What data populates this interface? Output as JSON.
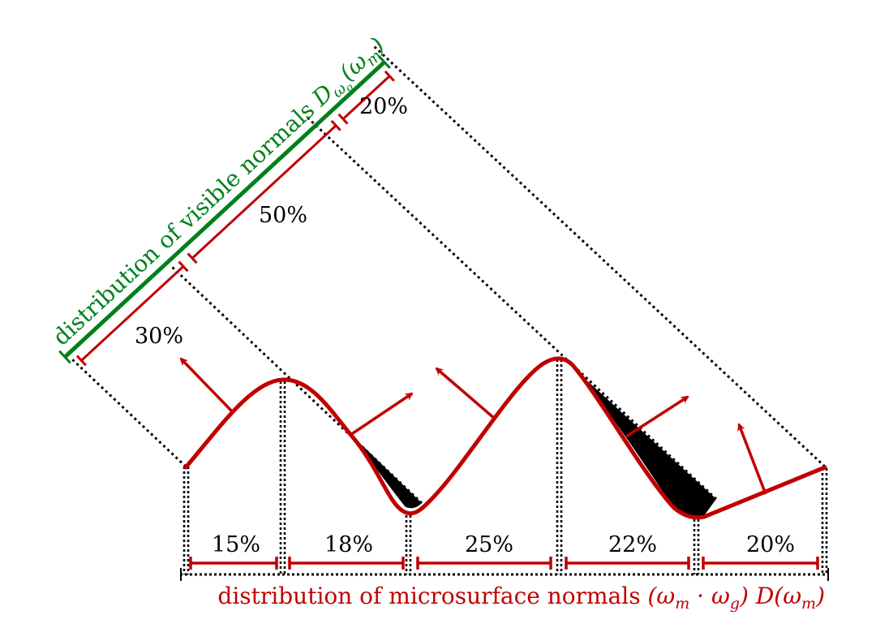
{
  "colors": {
    "red": "#c00000",
    "green": "#00801c",
    "black": "#000000"
  },
  "visible_distribution": {
    "label_text": "distribution of visible normals ",
    "label_math_base": "D",
    "label_math_sub": "ω",
    "label_math_subsub": "o",
    "label_math_arg": "(ω",
    "label_math_arg_sub": "m",
    "label_math_close": ")",
    "segments": [
      "20%",
      "50%",
      "30%"
    ]
  },
  "microsurface_distribution": {
    "label_text": "distribution of microsurface normals ",
    "label_math": "(ω",
    "label_math_sub1": "m",
    "label_math_dot": " · ω",
    "label_math_sub2": "g",
    "label_math_mid": ") D(ω",
    "label_math_sub3": "m",
    "label_math_close": ")",
    "segments": [
      "15%",
      "18%",
      "25%",
      "22%",
      "20%"
    ]
  },
  "icons": [
    "normal-arrow-icon"
  ]
}
